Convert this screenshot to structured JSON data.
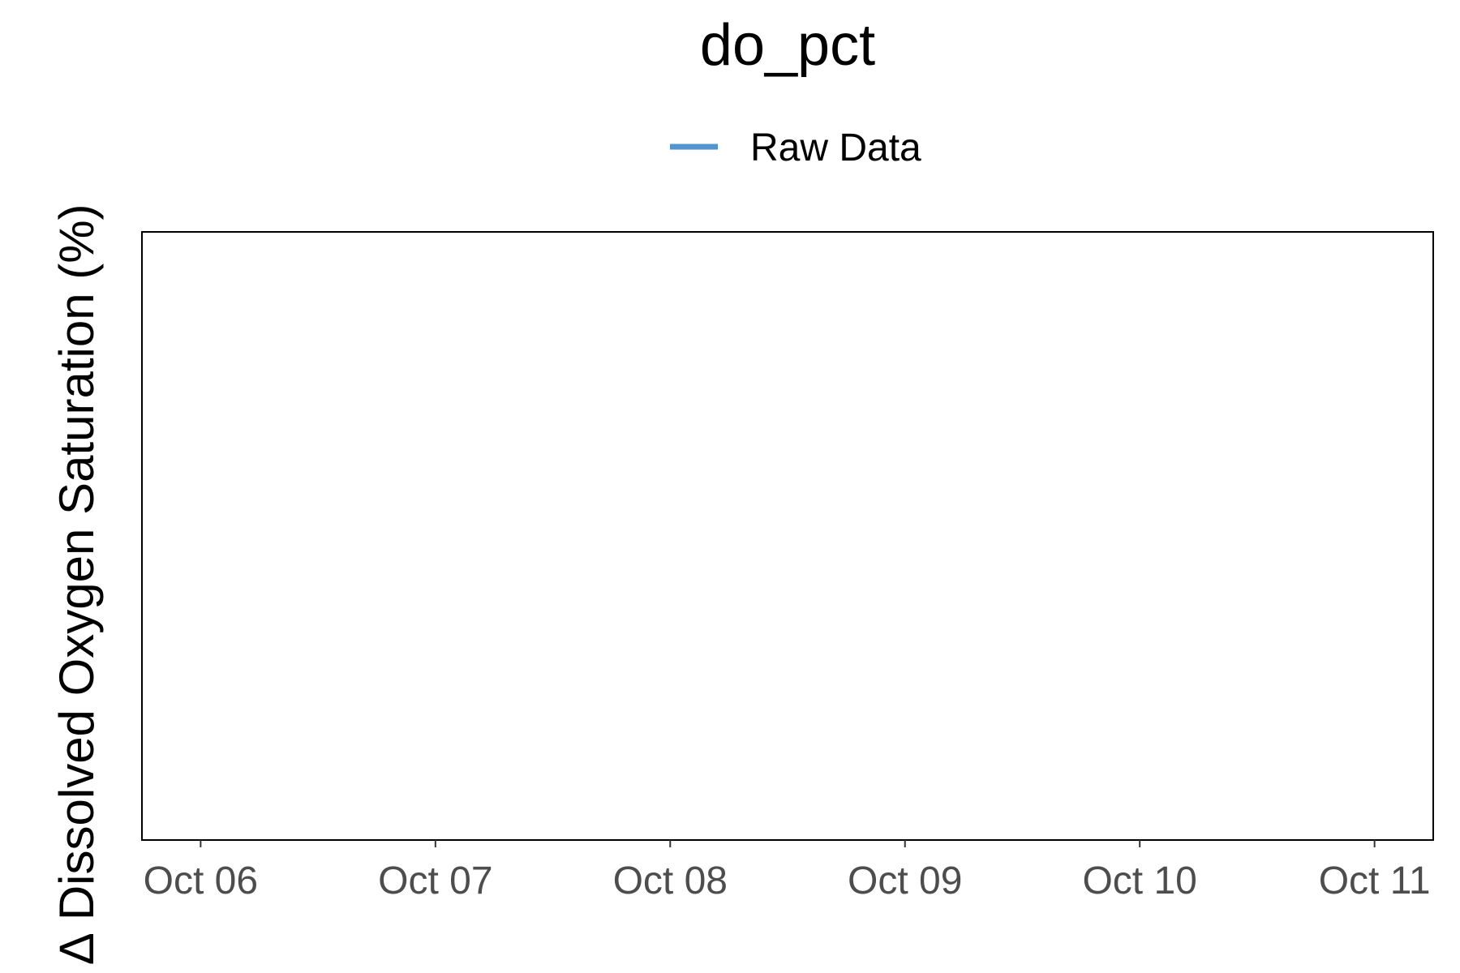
{
  "chart_data": {
    "type": "line",
    "title": "do_pct",
    "xlabel": "",
    "ylabel": "∆ Dissolved Oxygen Saturation (%)",
    "x_ticks": [
      "Oct 06",
      "Oct 07",
      "Oct 08",
      "Oct 09",
      "Oct 10",
      "Oct 11"
    ],
    "xlim": [
      "Oct 05 18:00",
      "Oct 11 06:00"
    ],
    "legend_position": "top-center",
    "grid": false,
    "series": [
      {
        "name": "Raw Data",
        "color": "#5294cf",
        "values": []
      }
    ]
  }
}
